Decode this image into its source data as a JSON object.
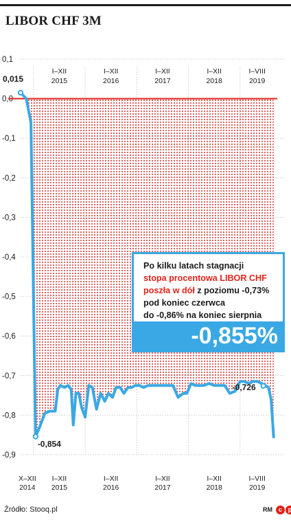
{
  "title": "LIBOR CHF 3M",
  "source": "Źródło: Stooq.pl",
  "logo": {
    "rm": "RM",
    "c1": "c",
    "c2": "p"
  },
  "callout": {
    "line1": "Po kilku latach stagnacji",
    "line2_red": "stopa procentowa LIBOR CHF",
    "line3_red": "poszła w dół",
    "line3_rest": " z poziomu -0,73%",
    "line4": "pod koniec czerwca",
    "line5": "do -0,86% na koniec sierpnia",
    "value": "-0,855%"
  },
  "colors": {
    "line": "#3aa8e4",
    "fill_dots": "#d42020",
    "zero_line": "#e2231a",
    "text": "#1a1a1a"
  },
  "chart_data": {
    "type": "area",
    "ylim": [
      -0.9,
      0.1
    ],
    "y_ticks": [
      "0,1",
      "0,0",
      "-0,1",
      "-0,2",
      "-0,3",
      "-0,4",
      "-0,5",
      "-0,6",
      "-0,7",
      "-0,8",
      "-0,9"
    ],
    "y_tick_values": [
      0.1,
      0.0,
      -0.1,
      -0.2,
      -0.3,
      -0.4,
      -0.5,
      -0.6,
      -0.7,
      -0.8,
      -0.9
    ],
    "top_labels": [
      {
        "period": "I–XII",
        "year": "2015",
        "t": 2015.5
      },
      {
        "period": "I–XII",
        "year": "2016",
        "t": 2016.5
      },
      {
        "period": "I–XII",
        "year": "2017",
        "t": 2017.5
      },
      {
        "period": "I–XII",
        "year": "2018",
        "t": 2018.5
      },
      {
        "period": "I–VIII",
        "year": "2019",
        "t": 2019.33
      }
    ],
    "bottom_labels": [
      {
        "period": "X–XII",
        "year": "2014",
        "t": 2014.88
      },
      {
        "period": "I–XII",
        "year": "2015",
        "t": 2015.5
      },
      {
        "period": "I–XII",
        "year": "2016",
        "t": 2016.5
      },
      {
        "period": "I–XII",
        "year": "2017",
        "t": 2017.5
      },
      {
        "period": "I–XII",
        "year": "2018",
        "t": 2018.5
      },
      {
        "period": "I–VIII",
        "year": "2019",
        "t": 2019.33
      }
    ],
    "annotations": [
      {
        "text": "0,015",
        "t": 2014.75,
        "v": 0.015
      },
      {
        "text": "-0,854",
        "t": 2015.04,
        "v": -0.854
      },
      {
        "text": "-0,726",
        "t": 2019.45,
        "v": -0.726
      }
    ],
    "series": [
      {
        "t": [
          2014.75,
          2014.86,
          2014.95,
          2015.04,
          2015.12,
          2015.22,
          2015.32,
          2015.42,
          2015.47,
          2015.52,
          2015.6,
          2015.67,
          2015.73,
          2015.77,
          2015.82,
          2015.88,
          2015.93,
          2016.0,
          2016.07,
          2016.14,
          2016.22,
          2016.3,
          2016.38,
          2016.45,
          2016.53,
          2016.6,
          2016.68,
          2016.75,
          2016.83,
          2016.9,
          2016.97,
          2017.05,
          2017.13,
          2017.22,
          2017.3,
          2017.4,
          2017.5,
          2017.6,
          2017.7,
          2017.8,
          2017.9,
          2017.97,
          2018.05,
          2018.13,
          2018.22,
          2018.3,
          2018.4,
          2018.5,
          2018.6,
          2018.7,
          2018.8,
          2018.9,
          2019.0,
          2019.08,
          2019.17,
          2019.25,
          2019.33,
          2019.42,
          2019.5,
          2019.55,
          2019.6,
          2019.65
        ],
        "values": [
          0.015,
          0.0,
          -0.06,
          -0.854,
          -0.83,
          -0.795,
          -0.79,
          -0.79,
          -0.735,
          -0.725,
          -0.73,
          -0.725,
          -0.735,
          -0.825,
          -0.745,
          -0.745,
          -0.78,
          -0.805,
          -0.725,
          -0.73,
          -0.785,
          -0.745,
          -0.765,
          -0.745,
          -0.755,
          -0.73,
          -0.73,
          -0.745,
          -0.73,
          -0.73,
          -0.725,
          -0.725,
          -0.73,
          -0.725,
          -0.725,
          -0.725,
          -0.725,
          -0.725,
          -0.725,
          -0.755,
          -0.745,
          -0.745,
          -0.72,
          -0.725,
          -0.725,
          -0.725,
          -0.72,
          -0.725,
          -0.725,
          -0.725,
          -0.745,
          -0.74,
          -0.715,
          -0.715,
          -0.72,
          -0.715,
          -0.715,
          -0.72,
          -0.726,
          -0.73,
          -0.76,
          -0.855
        ]
      }
    ]
  }
}
